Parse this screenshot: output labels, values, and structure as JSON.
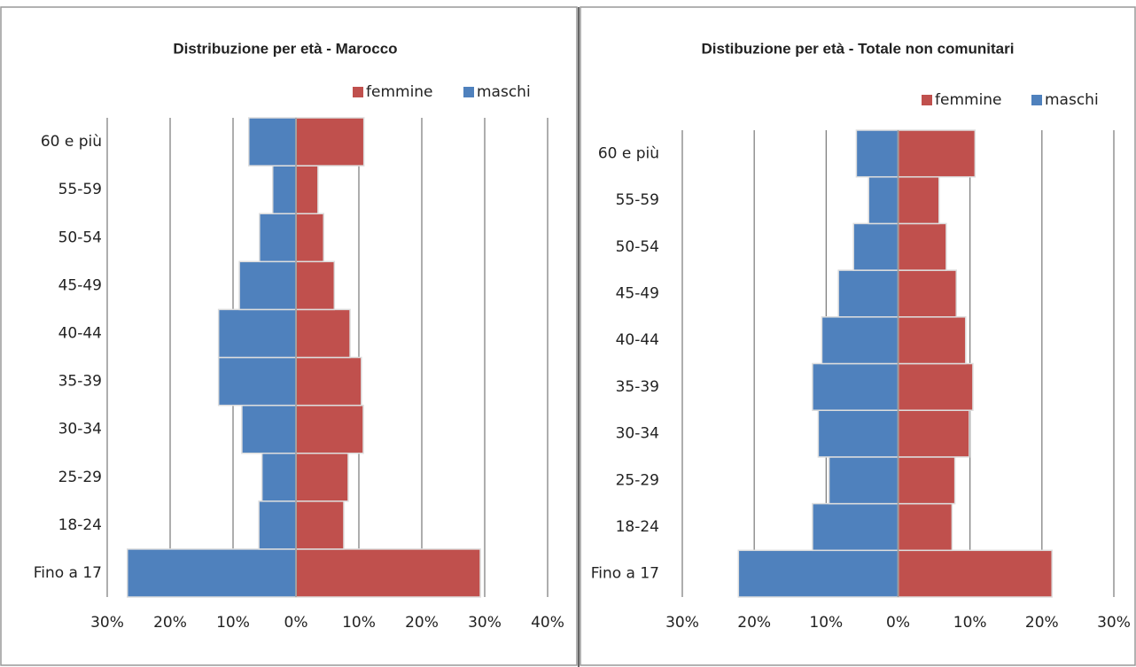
{
  "chart_data": [
    {
      "type": "pyramid",
      "title": "Distribuzione per età - Marocco",
      "categories": [
        "Fino a 17",
        "18-24",
        "25-29",
        "30-34",
        "35-39",
        "40-44",
        "45-49",
        "50-54",
        "55-59",
        "60 e più"
      ],
      "series": [
        {
          "name": "femmine",
          "color": "#c0504d",
          "values": [
            29.3,
            7.6,
            8.3,
            10.7,
            10.4,
            8.6,
            6.1,
            4.4,
            3.5,
            10.8
          ]
        },
        {
          "name": "maschi",
          "color": "#4f81bd",
          "values": [
            -26.8,
            -5.9,
            -5.4,
            -8.6,
            -12.3,
            -12.3,
            -9.0,
            -5.8,
            -3.7,
            -7.5
          ]
        }
      ],
      "xlim": [
        -30,
        40
      ],
      "xticks": [
        {
          "value": -30,
          "label": "30%"
        },
        {
          "value": -20,
          "label": "20%"
        },
        {
          "value": -10,
          "label": "10%"
        },
        {
          "value": 0,
          "label": "0%"
        },
        {
          "value": 10,
          "label": "10%"
        },
        {
          "value": 20,
          "label": "20%"
        },
        {
          "value": 30,
          "label": "30%"
        },
        {
          "value": 40,
          "label": "40%"
        }
      ],
      "grid": true,
      "legend": "top-right"
    },
    {
      "type": "pyramid",
      "title": "Distibuzione per età - Totale non comunitari",
      "categories": [
        "Fino a 17",
        "18-24",
        "25-29",
        "30-34",
        "35-39",
        "40-44",
        "45-49",
        "50-54",
        "55-59",
        "60 e più"
      ],
      "series": [
        {
          "name": "femmine",
          "color": "#c0504d",
          "values": [
            21.4,
            7.5,
            7.9,
            9.9,
            10.4,
            9.4,
            8.1,
            6.7,
            5.7,
            10.7
          ]
        },
        {
          "name": "maschi",
          "color": "#4f81bd",
          "values": [
            -22.2,
            -11.9,
            -9.6,
            -11.1,
            -11.9,
            -10.6,
            -8.3,
            -6.2,
            -4.1,
            -5.8
          ]
        }
      ],
      "xlim": [
        -30,
        30
      ],
      "xticks": [
        {
          "value": -30,
          "label": "30%"
        },
        {
          "value": -20,
          "label": "20%"
        },
        {
          "value": -10,
          "label": "10%"
        },
        {
          "value": 0,
          "label": "0%"
        },
        {
          "value": 10,
          "label": "10%"
        },
        {
          "value": 20,
          "label": "20%"
        },
        {
          "value": 30,
          "label": "30%"
        }
      ],
      "grid": true,
      "legend": "top-right"
    }
  ]
}
